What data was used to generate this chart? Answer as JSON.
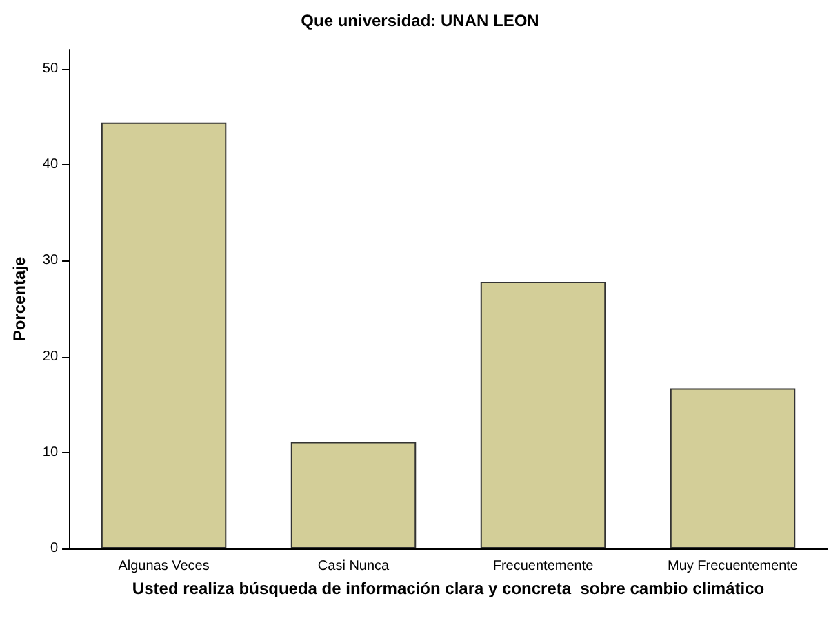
{
  "chart_data": {
    "type": "bar",
    "title": "Que universidad: UNAN LEON",
    "xlabel": "Usted realiza búsqueda de información clara y concreta  sobre cambio climático",
    "ylabel": "Porcentaje",
    "categories": [
      "Algunas Veces",
      "Casi Nunca",
      "Frecuentemente",
      "Muy Frecuentemente"
    ],
    "values": [
      44.4,
      11.1,
      27.8,
      16.7
    ],
    "color": "#d3ce98",
    "ylim": [
      0,
      52
    ],
    "yticks": [
      0,
      10,
      20,
      30,
      40,
      50
    ],
    "grid": false
  }
}
